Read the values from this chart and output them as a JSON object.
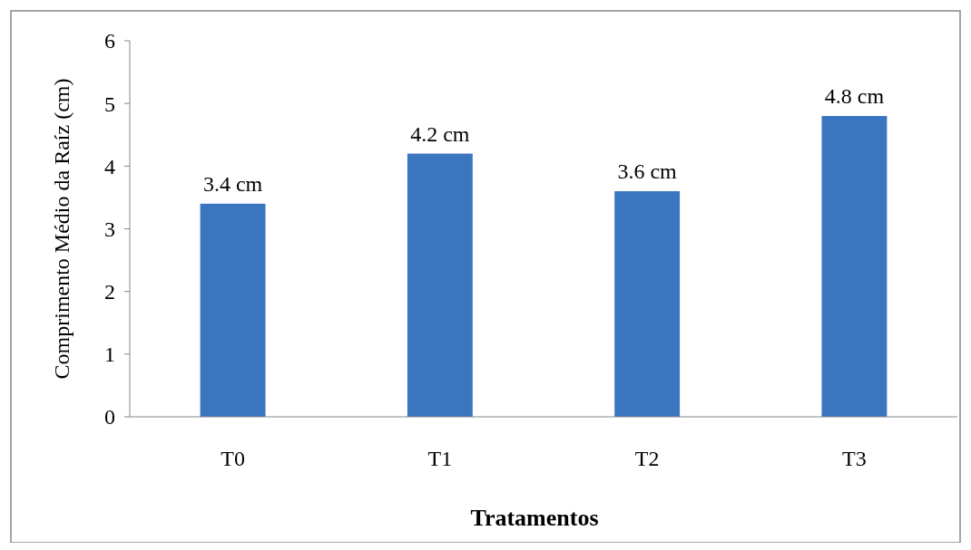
{
  "chart_data": {
    "type": "bar",
    "xlabel": "Tratamentos",
    "ylabel": "Comprimento Médio da Raíz (cm)",
    "categories": [
      "T0",
      "T1",
      "T2",
      "T3"
    ],
    "values": [
      3.4,
      4.2,
      3.6,
      4.8
    ],
    "value_labels": [
      "3.4 cm",
      "4.2 cm",
      "3.6 cm",
      "4.8 cm"
    ],
    "color": "#3a76c0",
    "ylim": [
      0,
      6
    ],
    "yticks": [
      0,
      1,
      2,
      3,
      4,
      5,
      6
    ],
    "grid": false
  }
}
